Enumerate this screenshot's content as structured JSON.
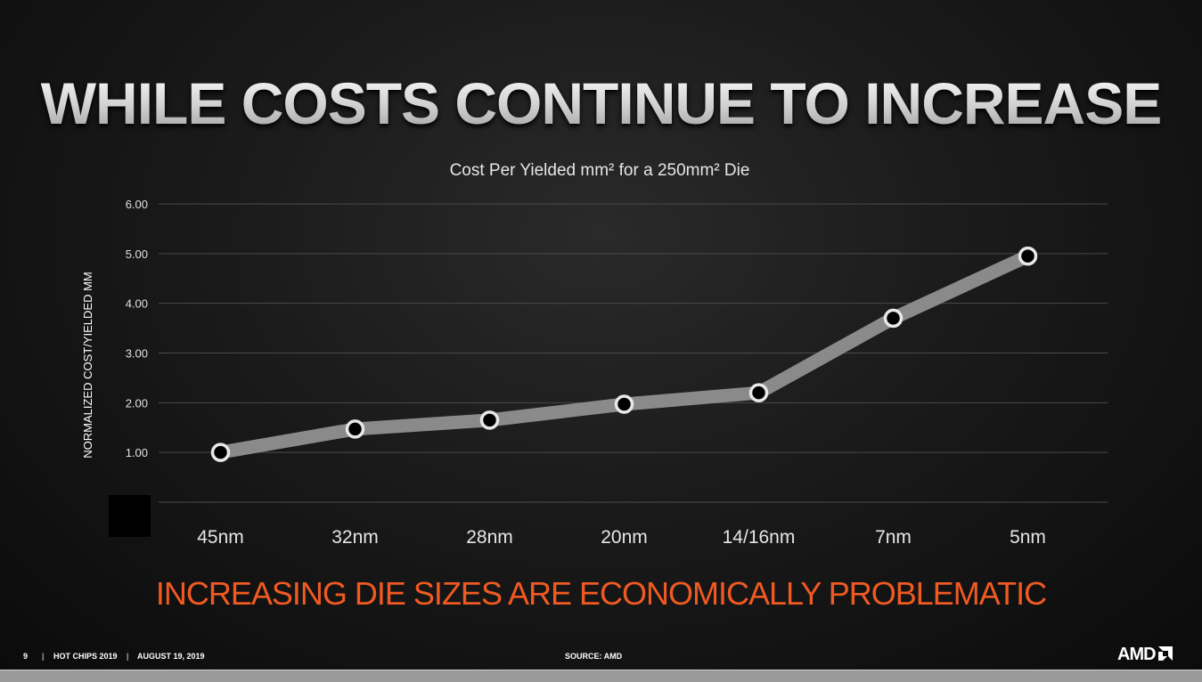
{
  "title": "WHILE COSTS CONTINUE TO INCREASE",
  "subtitle": "INCREASING DIE SIZES ARE ECONOMICALLY PROBLEMATIC",
  "footer": {
    "page": "9",
    "event": "HOT CHIPS 2019",
    "date": "AUGUST 19, 2019",
    "sep": "|",
    "source": "SOURCE: AMD",
    "logo": "AMD"
  },
  "colors": {
    "accent": "#f05a22",
    "line": "#8a8a8a",
    "marker_fill": "#000000",
    "marker_stroke": "#e8e8e8"
  },
  "chart_data": {
    "type": "line",
    "title": "Cost Per Yielded mm² for a 250mm² Die",
    "xlabel": "",
    "ylabel": "NORMALIZED COST/YIELDED MM",
    "categories": [
      "45nm",
      "32nm",
      "28nm",
      "20nm",
      "14/16nm",
      "7nm",
      "5nm"
    ],
    "values": [
      1.0,
      1.47,
      1.65,
      1.97,
      2.2,
      3.7,
      4.95
    ],
    "ylim": [
      0,
      6
    ],
    "yticks": [
      "1.00",
      "2.00",
      "3.00",
      "4.00",
      "5.00",
      "6.00"
    ],
    "grid": true,
    "legend": "none"
  }
}
